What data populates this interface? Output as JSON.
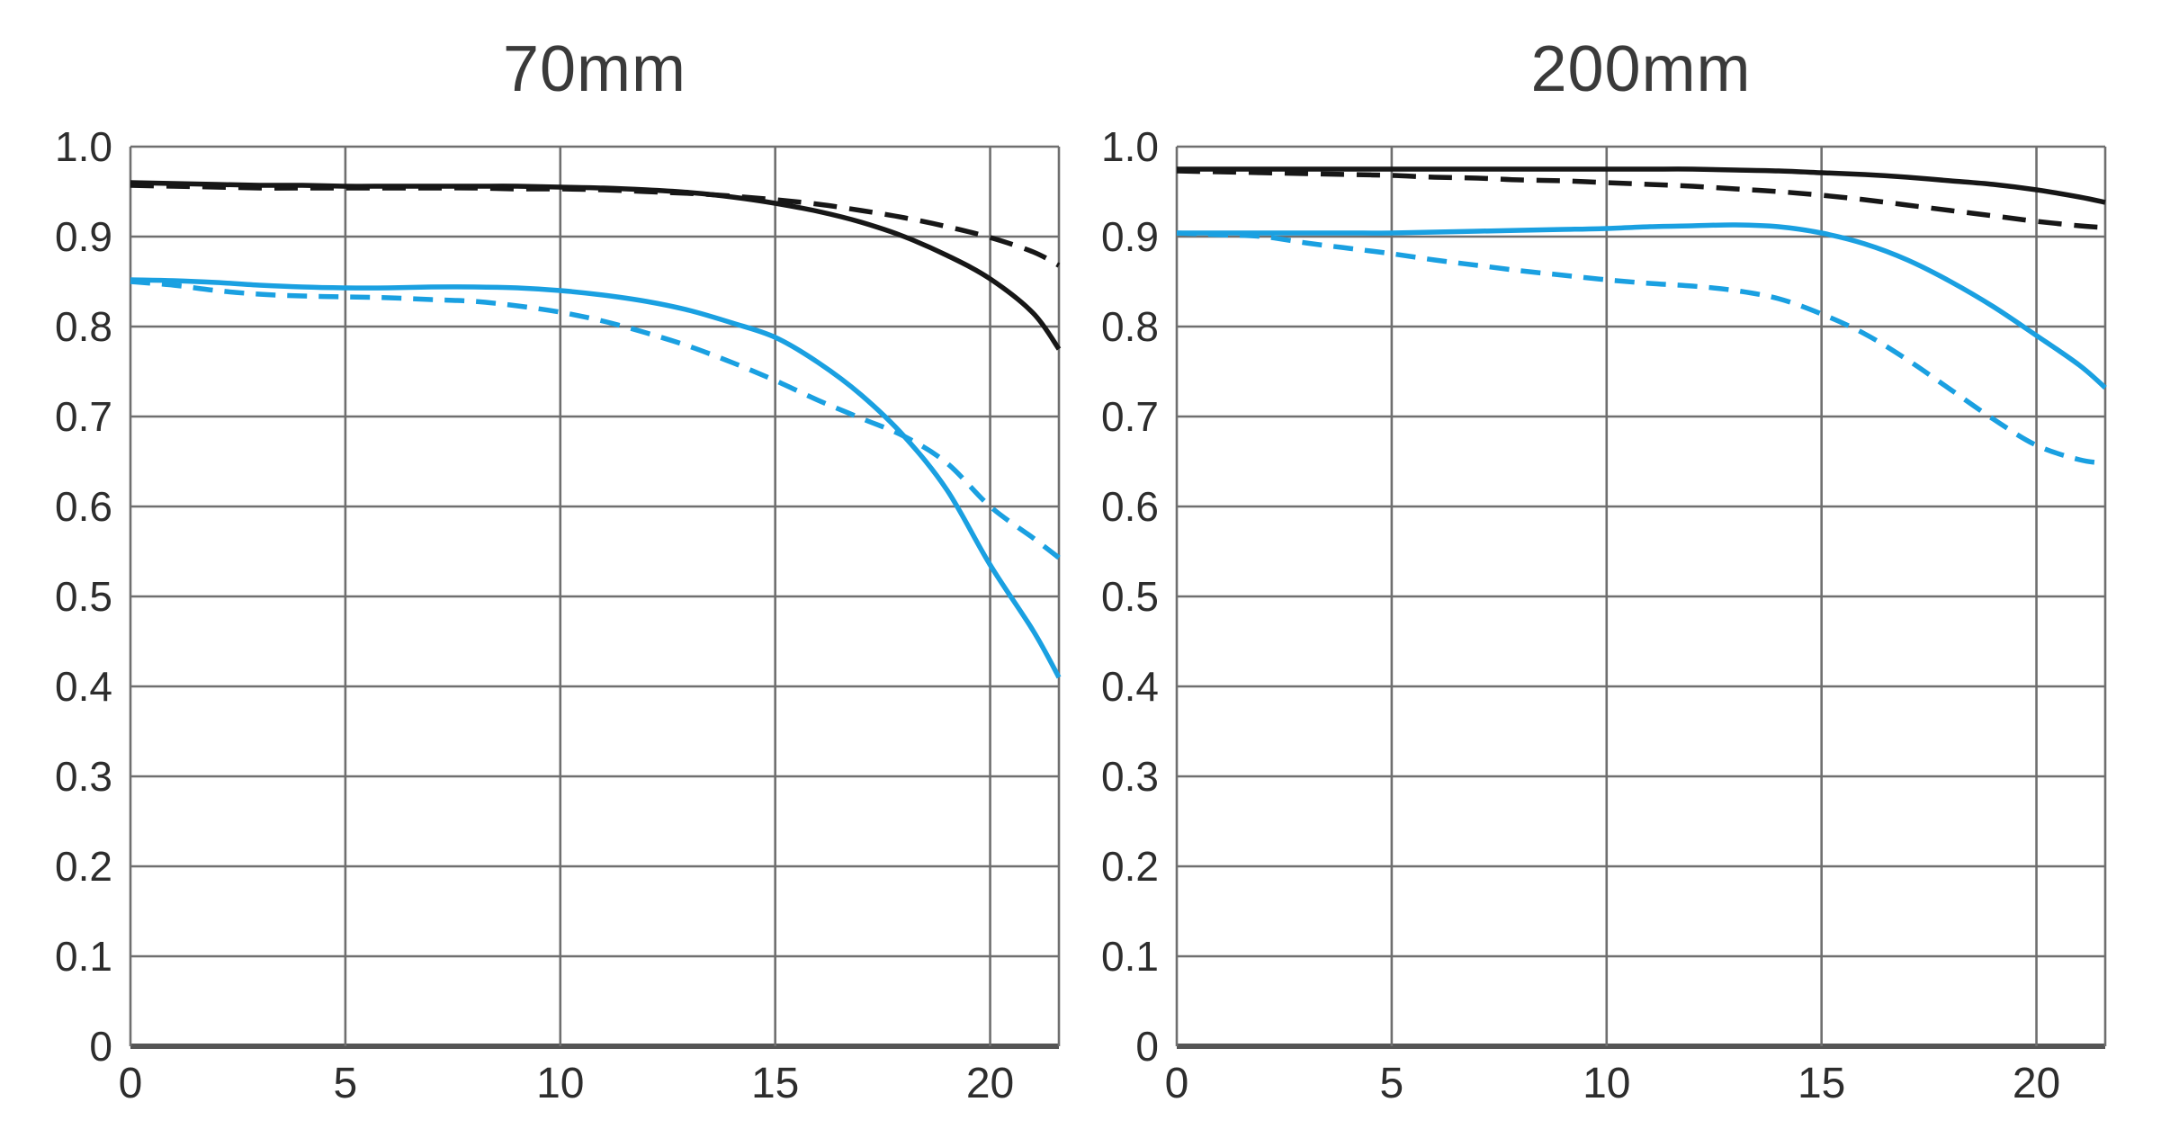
{
  "page": {
    "background": "#ffffff"
  },
  "colors": {
    "black_curve": "#171717",
    "blue_curve": "#1aa0e1",
    "grid": "#6f6f6f",
    "axis": "#555555",
    "title_text": "#3a3a3a",
    "tick_text": "#2d2d2d"
  },
  "chart_data": [
    {
      "type": "line",
      "title": "70mm",
      "xlabel": "",
      "ylabel": "",
      "xlim": [
        0,
        21.6
      ],
      "ylim": [
        0,
        1.0
      ],
      "grid": true,
      "legend_position": "none",
      "x_ticks": {
        "values": [
          0,
          5,
          10,
          15,
          20
        ],
        "labels": [
          "0",
          "5",
          "10",
          "15",
          "20"
        ]
      },
      "y_ticks": {
        "values": [
          1.0,
          0.9,
          0.8,
          0.7,
          0.6,
          0.5,
          0.4,
          0.3,
          0.2,
          0.1,
          0
        ],
        "labels": [
          "1.0",
          "0.9",
          "0.8",
          "0.7",
          "0.6",
          "0.5",
          "0.4",
          "0.3",
          "0.2",
          "0.1",
          "0"
        ]
      },
      "x": [
        0,
        1,
        2,
        3,
        4,
        5,
        6,
        7,
        8,
        9,
        10,
        11,
        12,
        13,
        14,
        15,
        16,
        17,
        18,
        19,
        20,
        21,
        21.6
      ],
      "series": [
        {
          "key": "black-solid",
          "line": "solid",
          "color": "black_curve",
          "values": [
            0.96,
            0.959,
            0.958,
            0.957,
            0.957,
            0.956,
            0.956,
            0.956,
            0.956,
            0.956,
            0.955,
            0.954,
            0.952,
            0.949,
            0.944,
            0.937,
            0.928,
            0.916,
            0.9,
            0.879,
            0.853,
            0.815,
            0.775
          ]
        },
        {
          "key": "black-dashed",
          "line": "dashed",
          "color": "black_curve",
          "values": [
            0.957,
            0.956,
            0.955,
            0.954,
            0.954,
            0.954,
            0.954,
            0.954,
            0.954,
            0.953,
            0.953,
            0.952,
            0.95,
            0.948,
            0.945,
            0.941,
            0.936,
            0.929,
            0.921,
            0.911,
            0.899,
            0.883,
            0.868
          ]
        },
        {
          "key": "blue-solid",
          "line": "solid",
          "color": "blue_curve",
          "values": [
            0.852,
            0.851,
            0.849,
            0.846,
            0.844,
            0.843,
            0.843,
            0.844,
            0.844,
            0.843,
            0.84,
            0.835,
            0.828,
            0.818,
            0.804,
            0.788,
            0.76,
            0.724,
            0.678,
            0.618,
            0.535,
            0.462,
            0.41
          ]
        },
        {
          "key": "blue-dashed",
          "line": "dashed",
          "color": "blue_curve",
          "values": [
            0.85,
            0.846,
            0.84,
            0.836,
            0.834,
            0.833,
            0.832,
            0.83,
            0.828,
            0.823,
            0.816,
            0.806,
            0.793,
            0.778,
            0.76,
            0.74,
            0.718,
            0.698,
            0.678,
            0.648,
            0.6,
            0.565,
            0.543
          ]
        }
      ]
    },
    {
      "type": "line",
      "title": "200mm",
      "xlabel": "",
      "ylabel": "",
      "xlim": [
        0,
        21.6
      ],
      "ylim": [
        0,
        1.0
      ],
      "grid": true,
      "legend_position": "none",
      "x_ticks": {
        "values": [
          0,
          5,
          10,
          15,
          20
        ],
        "labels": [
          "0",
          "5",
          "10",
          "15",
          "20"
        ]
      },
      "y_ticks": {
        "values": [
          1.0,
          0.9,
          0.8,
          0.7,
          0.6,
          0.5,
          0.4,
          0.3,
          0.2,
          0.1,
          0
        ],
        "labels": [
          "1.0",
          "0.9",
          "0.8",
          "0.7",
          "0.6",
          "0.5",
          "0.4",
          "0.3",
          "0.2",
          "0.1",
          "0"
        ]
      },
      "x": [
        0,
        1,
        2,
        3,
        4,
        5,
        6,
        7,
        8,
        9,
        10,
        11,
        12,
        13,
        14,
        15,
        16,
        17,
        18,
        19,
        20,
        21,
        21.6
      ],
      "series": [
        {
          "key": "black-solid",
          "line": "solid",
          "color": "black_curve",
          "values": [
            0.975,
            0.975,
            0.975,
            0.975,
            0.975,
            0.975,
            0.975,
            0.975,
            0.975,
            0.975,
            0.975,
            0.975,
            0.975,
            0.974,
            0.973,
            0.971,
            0.969,
            0.966,
            0.962,
            0.958,
            0.952,
            0.944,
            0.938
          ]
        },
        {
          "key": "black-dashed",
          "line": "dashed",
          "color": "black_curve",
          "values": [
            0.973,
            0.972,
            0.971,
            0.97,
            0.969,
            0.968,
            0.966,
            0.965,
            0.963,
            0.962,
            0.96,
            0.958,
            0.956,
            0.953,
            0.95,
            0.946,
            0.941,
            0.935,
            0.929,
            0.923,
            0.917,
            0.912,
            0.91
          ]
        },
        {
          "key": "blue-solid",
          "line": "solid",
          "color": "blue_curve",
          "values": [
            0.904,
            0.904,
            0.904,
            0.904,
            0.904,
            0.904,
            0.905,
            0.906,
            0.907,
            0.908,
            0.909,
            0.911,
            0.912,
            0.913,
            0.911,
            0.904,
            0.892,
            0.874,
            0.85,
            0.822,
            0.79,
            0.757,
            0.732
          ]
        },
        {
          "key": "blue-dashed",
          "line": "dashed",
          "color": "blue_curve",
          "values": [
            0.904,
            0.902,
            0.9,
            0.893,
            0.887,
            0.881,
            0.874,
            0.868,
            0.862,
            0.857,
            0.852,
            0.848,
            0.845,
            0.84,
            0.831,
            0.814,
            0.792,
            0.763,
            0.73,
            0.697,
            0.668,
            0.652,
            0.648
          ]
        }
      ]
    }
  ]
}
